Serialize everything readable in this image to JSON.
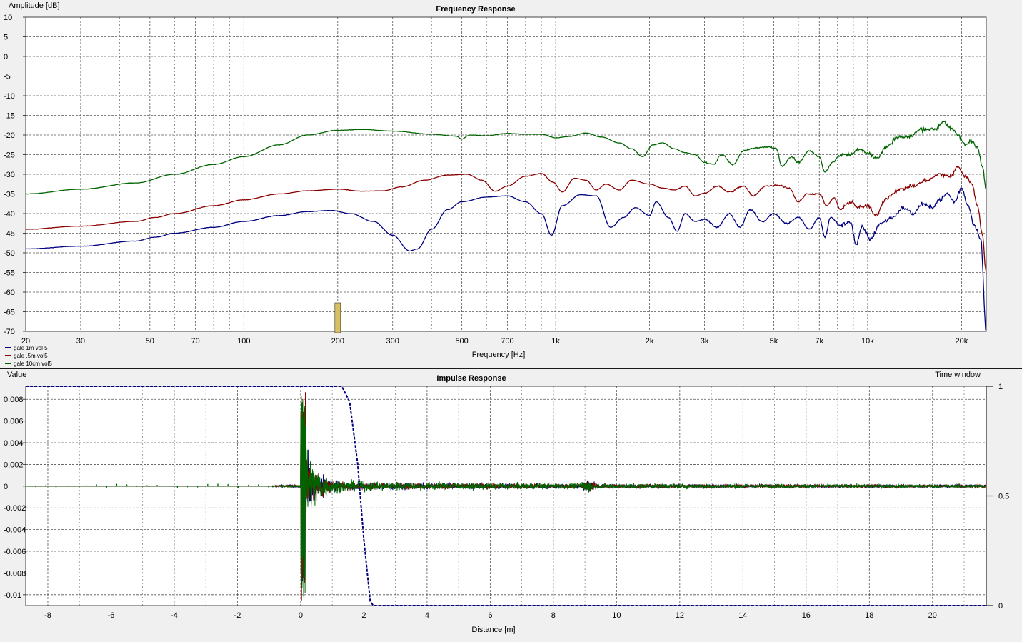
{
  "chart_data": [
    {
      "type": "line",
      "title": "Frequency Response",
      "xlabel": "Frequency [Hz]",
      "ylabel": "Amplitude [dB]",
      "xscale": "log",
      "xlim": [
        20,
        24000
      ],
      "ylim": [
        -70,
        10
      ],
      "grid": true,
      "legend_position": "bottom-left",
      "x_ticks": [
        {
          "v": 20,
          "l": "20"
        },
        {
          "v": 30,
          "l": "30"
        },
        {
          "v": 50,
          "l": "50"
        },
        {
          "v": 70,
          "l": "70"
        },
        {
          "v": 100,
          "l": "100"
        },
        {
          "v": 200,
          "l": "200"
        },
        {
          "v": 300,
          "l": "300"
        },
        {
          "v": 500,
          "l": "500"
        },
        {
          "v": 700,
          "l": "700"
        },
        {
          "v": 1000,
          "l": "1k"
        },
        {
          "v": 2000,
          "l": "2k"
        },
        {
          "v": 3000,
          "l": "3k"
        },
        {
          "v": 5000,
          "l": "5k"
        },
        {
          "v": 7000,
          "l": "7k"
        },
        {
          "v": 10000,
          "l": "10k"
        },
        {
          "v": 20000,
          "l": "20k"
        }
      ],
      "y_ticks": [
        "10",
        "5",
        "0",
        "-5",
        "-10",
        "-15",
        "-20",
        "-25",
        "-30",
        "-35",
        "-40",
        "-45",
        "-50",
        "-55",
        "-60",
        "-65",
        "-70"
      ],
      "series": [
        {
          "name": "gale 1m vol 5",
          "color": "#000080",
          "points": [
            [
              20,
              -49
            ],
            [
              30,
              -48.3
            ],
            [
              45,
              -47
            ],
            [
              52,
              -46
            ],
            [
              60,
              -45
            ],
            [
              80,
              -43.5
            ],
            [
              100,
              -42
            ],
            [
              130,
              -40.5
            ],
            [
              160,
              -39.5
            ],
            [
              190,
              -39.2
            ],
            [
              220,
              -40
            ],
            [
              260,
              -42
            ],
            [
              300,
              -45.5
            ],
            [
              340,
              -49.5
            ],
            [
              360,
              -49
            ],
            [
              400,
              -44
            ],
            [
              450,
              -39
            ],
            [
              500,
              -37
            ],
            [
              600,
              -35.8
            ],
            [
              700,
              -35.5
            ],
            [
              800,
              -37
            ],
            [
              900,
              -40
            ],
            [
              970,
              -45.5
            ],
            [
              1050,
              -38
            ],
            [
              1200,
              -35.2
            ],
            [
              1350,
              -35.5
            ],
            [
              1500,
              -43.5
            ],
            [
              1650,
              -41
            ],
            [
              1800,
              -38.5
            ],
            [
              2000,
              -40.5
            ],
            [
              2100,
              -37
            ],
            [
              2300,
              -41
            ],
            [
              2450,
              -44.5
            ],
            [
              2600,
              -40
            ],
            [
              2800,
              -42
            ],
            [
              3000,
              -41.5
            ],
            [
              3300,
              -43.5
            ],
            [
              3600,
              -40
            ],
            [
              3900,
              -43.5
            ],
            [
              4200,
              -39
            ],
            [
              4600,
              -42
            ],
            [
              5000,
              -40
            ],
            [
              5500,
              -42.5
            ],
            [
              6000,
              -41
            ],
            [
              6500,
              -44
            ],
            [
              7000,
              -41
            ],
            [
              7300,
              -46
            ],
            [
              7600,
              -41
            ],
            [
              8200,
              -43
            ],
            [
              8800,
              -42
            ],
            [
              9200,
              -48
            ],
            [
              9600,
              -43.5
            ],
            [
              10200,
              -46.5
            ],
            [
              11000,
              -42.5
            ],
            [
              12000,
              -41
            ],
            [
              13000,
              -38.5
            ],
            [
              14000,
              -40
            ],
            [
              15000,
              -37.5
            ],
            [
              16000,
              -38.5
            ],
            [
              17000,
              -36.5
            ],
            [
              18000,
              -35
            ],
            [
              19000,
              -37
            ],
            [
              20000,
              -33.5
            ],
            [
              21000,
              -38
            ],
            [
              22000,
              -43
            ],
            [
              23000,
              -46
            ],
            [
              24000,
              -70
            ]
          ]
        },
        {
          "name": "gale .5m vol5",
          "color": "#8b0000",
          "points": [
            [
              20,
              -44
            ],
            [
              30,
              -43.2
            ],
            [
              45,
              -42
            ],
            [
              52,
              -41
            ],
            [
              60,
              -40
            ],
            [
              80,
              -38
            ],
            [
              100,
              -36.5
            ],
            [
              130,
              -35
            ],
            [
              160,
              -34.2
            ],
            [
              200,
              -33.8
            ],
            [
              240,
              -34.3
            ],
            [
              280,
              -34.2
            ],
            [
              320,
              -33.2
            ],
            [
              380,
              -31.5
            ],
            [
              450,
              -30.2
            ],
            [
              520,
              -30
            ],
            [
              580,
              -31.5
            ],
            [
              640,
              -34.3
            ],
            [
              700,
              -33
            ],
            [
              800,
              -30.5
            ],
            [
              900,
              -29.8
            ],
            [
              980,
              -32
            ],
            [
              1050,
              -34.5
            ],
            [
              1150,
              -31
            ],
            [
              1250,
              -31.5
            ],
            [
              1350,
              -34
            ],
            [
              1450,
              -32.5
            ],
            [
              1600,
              -34
            ],
            [
              1750,
              -31.5
            ],
            [
              2000,
              -32.5
            ],
            [
              2200,
              -33.5
            ],
            [
              2400,
              -34
            ],
            [
              2600,
              -33
            ],
            [
              2800,
              -35.5
            ],
            [
              3000,
              -34.8
            ],
            [
              3300,
              -33
            ],
            [
              3600,
              -34.5
            ],
            [
              4000,
              -33
            ],
            [
              4300,
              -35.5
            ],
            [
              4700,
              -33
            ],
            [
              5200,
              -32.8
            ],
            [
              5600,
              -33.5
            ],
            [
              6000,
              -37
            ],
            [
              6400,
              -35
            ],
            [
              7000,
              -35
            ],
            [
              7400,
              -38
            ],
            [
              7800,
              -36
            ],
            [
              8200,
              -39
            ],
            [
              8800,
              -37
            ],
            [
              9400,
              -38.5
            ],
            [
              10000,
              -38
            ],
            [
              10600,
              -40.5
            ],
            [
              11500,
              -36
            ],
            [
              12500,
              -34
            ],
            [
              14000,
              -33
            ],
            [
              15500,
              -31.5
            ],
            [
              17000,
              -30
            ],
            [
              18500,
              -30.5
            ],
            [
              19500,
              -28
            ],
            [
              20500,
              -30.5
            ],
            [
              21500,
              -32
            ],
            [
              22500,
              -38
            ],
            [
              23300,
              -45
            ],
            [
              24000,
              -55
            ]
          ]
        },
        {
          "name": "gale 10cm vol5",
          "color": "#006400",
          "points": [
            [
              20,
              -35
            ],
            [
              30,
              -33.8
            ],
            [
              45,
              -32.2
            ],
            [
              60,
              -30
            ],
            [
              80,
              -27.5
            ],
            [
              100,
              -25.5
            ],
            [
              130,
              -22.5
            ],
            [
              160,
              -20
            ],
            [
              200,
              -18.8
            ],
            [
              240,
              -18.6
            ],
            [
              300,
              -19
            ],
            [
              400,
              -19.8
            ],
            [
              480,
              -20.3
            ],
            [
              500,
              -21
            ],
            [
              530,
              -20
            ],
            [
              600,
              -20.2
            ],
            [
              700,
              -19.6
            ],
            [
              800,
              -19.8
            ],
            [
              900,
              -19.8
            ],
            [
              1000,
              -20.7
            ],
            [
              1100,
              -20.4
            ],
            [
              1250,
              -19.5
            ],
            [
              1400,
              -20.5
            ],
            [
              1600,
              -22
            ],
            [
              1750,
              -23.5
            ],
            [
              1900,
              -25.5
            ],
            [
              2050,
              -22.5
            ],
            [
              2200,
              -22
            ],
            [
              2400,
              -23.5
            ],
            [
              2600,
              -24.5
            ],
            [
              2800,
              -25
            ],
            [
              3000,
              -27
            ],
            [
              3200,
              -27.5
            ],
            [
              3400,
              -25
            ],
            [
              3700,
              -27.5
            ],
            [
              4000,
              -24
            ],
            [
              4400,
              -23.3
            ],
            [
              4800,
              -23
            ],
            [
              5100,
              -23.5
            ],
            [
              5300,
              -28
            ],
            [
              5700,
              -25.5
            ],
            [
              6000,
              -27
            ],
            [
              6500,
              -24
            ],
            [
              7000,
              -25.5
            ],
            [
              7300,
              -29.5
            ],
            [
              7700,
              -27
            ],
            [
              8200,
              -25
            ],
            [
              8800,
              -25
            ],
            [
              9400,
              -23.5
            ],
            [
              10000,
              -24.5
            ],
            [
              10700,
              -26
            ],
            [
              11500,
              -23
            ],
            [
              12500,
              -20.5
            ],
            [
              13500,
              -20.5
            ],
            [
              15000,
              -18.5
            ],
            [
              16500,
              -18.5
            ],
            [
              17500,
              -16.5
            ],
            [
              18500,
              -18.5
            ],
            [
              19500,
              -20
            ],
            [
              20500,
              -22.5
            ],
            [
              21500,
              -21.5
            ],
            [
              22500,
              -23
            ],
            [
              23300,
              -28
            ],
            [
              24000,
              -34
            ]
          ]
        }
      ],
      "legend": [
        {
          "name": "gale 1m vol 5",
          "color": "#000080"
        },
        {
          "name": "gale .5m vol5",
          "color": "#8b0000"
        },
        {
          "name": "gale 10cm vol5",
          "color": "#006400"
        }
      ]
    },
    {
      "type": "line",
      "title": "Impulse Response",
      "xlabel": "Distance [m]",
      "ylabel": "Value",
      "y2label": "Time window",
      "xlim": [
        -8.7,
        21.7
      ],
      "ylim": [
        -0.011,
        0.0092
      ],
      "y2lim": [
        0,
        1
      ],
      "grid": true,
      "x_ticks": [
        "-8",
        "-6",
        "-4",
        "-2",
        "0",
        "2",
        "4",
        "6",
        "8",
        "10",
        "12",
        "14",
        "16",
        "18",
        "20"
      ],
      "x_tick_values": [
        -8,
        -6,
        -4,
        -2,
        0,
        2,
        4,
        6,
        8,
        10,
        12,
        14,
        16,
        18,
        20
      ],
      "y_ticks": [
        "0.008",
        "0.006",
        "0.004",
        "0.002",
        "0",
        "-0.002",
        "-0.004",
        "-0.006",
        "-0.008",
        "-0.01"
      ],
      "y_tick_values": [
        0.008,
        0.006,
        0.004,
        0.002,
        0,
        -0.002,
        -0.004,
        -0.006,
        -0.008,
        -0.01
      ],
      "y2_ticks": [
        "1",
        "0.5",
        "0"
      ],
      "y2_tick_values": [
        1,
        0.5,
        0
      ],
      "impulse": {
        "onset_m": 0,
        "series": [
          {
            "name": "gale 1m vol 5",
            "color": "#000080",
            "peak_pos": 0.0065,
            "peak_neg": -0.0095
          },
          {
            "name": "gale .5m vol5",
            "color": "#8b0000",
            "peak_pos": 0.0092,
            "peak_neg": -0.011
          },
          {
            "name": "gale 10cm vol5",
            "color": "#006400",
            "peak_pos": 0.0085,
            "peak_neg": -0.0105
          }
        ]
      },
      "time_window": {
        "color": "#000080",
        "points": [
          [
            -8.7,
            1
          ],
          [
            1.3,
            1
          ],
          [
            1.55,
            0.93
          ],
          [
            1.8,
            0.65
          ],
          [
            2.0,
            0.3
          ],
          [
            2.2,
            0.02
          ],
          [
            2.3,
            0
          ],
          [
            21.7,
            0
          ]
        ]
      }
    }
  ]
}
